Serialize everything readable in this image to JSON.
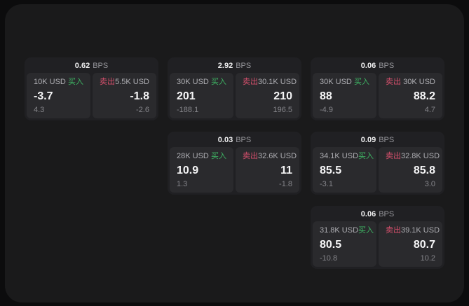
{
  "theme": {
    "page_background": "#0c0c0d",
    "surface_background": "#1a1a1b",
    "card_background": "#202023",
    "tile_background": "#2a2a2d",
    "buy_color": "#3eb564",
    "sell_color": "#d7506d",
    "primary_text": "#f5f5f6",
    "muted_text": "#85858a"
  },
  "labels": {
    "buy": "买入",
    "sell": "卖出",
    "bps_unit": "BPS"
  },
  "cards": [
    {
      "row": 1,
      "col": 1,
      "bps": "0.62",
      "buy": {
        "amount": "10K USD",
        "price": "-3.7",
        "delta": "4.3"
      },
      "sell": {
        "amount": "5.5K USD",
        "price": "-1.8",
        "delta": "-2.6"
      }
    },
    {
      "row": 1,
      "col": 2,
      "bps": "2.92",
      "buy": {
        "amount": "30K USD",
        "price": "201",
        "delta": "-188.1"
      },
      "sell": {
        "amount": "30.1K USD",
        "price": "210",
        "delta": "196.5"
      }
    },
    {
      "row": 1,
      "col": 3,
      "bps": "0.06",
      "buy": {
        "amount": "30K USD",
        "price": "88",
        "delta": "-4.9"
      },
      "sell": {
        "amount": "30K USD",
        "price": "88.2",
        "delta": "4.7"
      }
    },
    {
      "row": 2,
      "col": 2,
      "bps": "0.03",
      "buy": {
        "amount": "28K USD",
        "price": "10.9",
        "delta": "1.3"
      },
      "sell": {
        "amount": "32.6K USD",
        "price": "11",
        "delta": "-1.8"
      }
    },
    {
      "row": 2,
      "col": 3,
      "bps": "0.09",
      "buy": {
        "amount": "34.1K USD",
        "price": "85.5",
        "delta": "-3.1"
      },
      "sell": {
        "amount": "32.8K USD",
        "price": "85.8",
        "delta": "3.0"
      }
    },
    {
      "row": 3,
      "col": 3,
      "bps": "0.06",
      "buy": {
        "amount": "31.8K USD",
        "price": "80.5",
        "delta": "-10.8"
      },
      "sell": {
        "amount": "39.1K USD",
        "price": "80.7",
        "delta": "10.2"
      }
    }
  ]
}
